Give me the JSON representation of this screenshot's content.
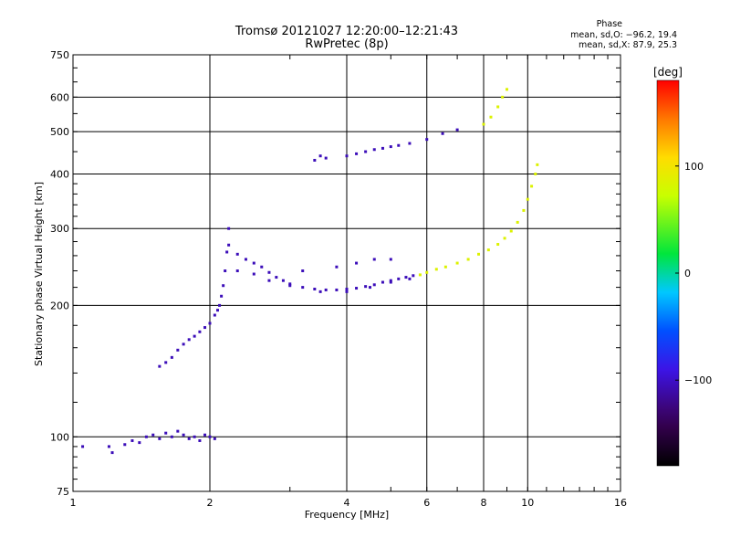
{
  "chart_data": {
    "type": "scatter",
    "title": "Tromsø 20121027 12:20:00–12:21:43",
    "subtitle": "RwPretec (8p)",
    "xlabel": "Frequency [MHz]",
    "ylabel": "Stationary phase Virtual Height [km]",
    "x_scale": "log",
    "y_scale": "log",
    "xlim": [
      1,
      16
    ],
    "ylim": [
      75,
      750
    ],
    "x_ticks": [
      "1",
      "2",
      "4",
      "6",
      "8",
      "10",
      "16"
    ],
    "x_tick_values": [
      1,
      2,
      4,
      6,
      8,
      10,
      16
    ],
    "y_ticks": [
      "75",
      "100",
      "200",
      "300",
      "400",
      "500",
      "600",
      "750"
    ],
    "y_tick_values": [
      75,
      100,
      200,
      300,
      400,
      500,
      600,
      750
    ],
    "grid": true,
    "phase_info": {
      "title": "Phase",
      "line_o": "mean, sd,O: −96.2, 19.4",
      "line_x": "mean, sd,X: 87.9, 25.3"
    },
    "colorbar": {
      "label": "[deg]",
      "range": [
        -180,
        180
      ],
      "ticks": [
        "100",
        "0",
        "−100"
      ],
      "tick_values": [
        100,
        0,
        -100
      ]
    },
    "series": [
      {
        "mode": "O",
        "color_deg": -105,
        "points": [
          [
            1.05,
            95
          ],
          [
            1.2,
            95
          ],
          [
            1.22,
            92
          ],
          [
            1.3,
            96
          ],
          [
            1.35,
            98
          ],
          [
            1.4,
            97
          ],
          [
            1.45,
            100
          ],
          [
            1.5,
            101
          ],
          [
            1.55,
            99
          ],
          [
            1.6,
            102
          ],
          [
            1.65,
            100
          ],
          [
            1.7,
            103
          ],
          [
            1.75,
            101
          ],
          [
            1.8,
            99
          ],
          [
            1.85,
            100
          ],
          [
            1.9,
            98
          ],
          [
            1.95,
            101
          ],
          [
            2.0,
            100
          ],
          [
            2.05,
            99
          ],
          [
            1.55,
            145
          ],
          [
            1.6,
            148
          ],
          [
            1.65,
            152
          ],
          [
            1.7,
            158
          ],
          [
            1.75,
            163
          ],
          [
            1.8,
            167
          ],
          [
            1.85,
            170
          ],
          [
            1.9,
            174
          ],
          [
            1.95,
            178
          ],
          [
            2.0,
            182
          ],
          [
            2.05,
            190
          ],
          [
            2.08,
            195
          ],
          [
            2.1,
            200
          ],
          [
            2.12,
            210
          ],
          [
            2.14,
            222
          ],
          [
            2.16,
            240
          ],
          [
            2.18,
            265
          ],
          [
            2.2,
            300
          ],
          [
            2.2,
            275
          ],
          [
            2.3,
            262
          ],
          [
            2.4,
            255
          ],
          [
            2.5,
            250
          ],
          [
            2.6,
            245
          ],
          [
            2.7,
            238
          ],
          [
            2.8,
            232
          ],
          [
            2.9,
            228
          ],
          [
            3.0,
            224
          ],
          [
            3.2,
            220
          ],
          [
            3.4,
            218
          ],
          [
            3.6,
            217
          ],
          [
            3.8,
            217
          ],
          [
            4.0,
            218
          ],
          [
            4.2,
            219
          ],
          [
            4.4,
            221
          ],
          [
            4.6,
            223
          ],
          [
            4.8,
            226
          ],
          [
            5.0,
            228
          ],
          [
            5.2,
            230
          ],
          [
            5.4,
            232
          ],
          [
            5.6,
            234
          ],
          [
            2.3,
            240
          ],
          [
            2.5,
            236
          ],
          [
            2.7,
            228
          ],
          [
            3.0,
            222
          ],
          [
            3.5,
            215
          ],
          [
            4.0,
            215
          ],
          [
            4.5,
            220
          ],
          [
            5.0,
            226
          ],
          [
            5.5,
            230
          ],
          [
            3.2,
            240
          ],
          [
            3.8,
            245
          ],
          [
            4.2,
            250
          ],
          [
            4.6,
            255
          ],
          [
            5.0,
            255
          ],
          [
            3.4,
            430
          ],
          [
            3.5,
            440
          ],
          [
            3.6,
            435
          ],
          [
            4.0,
            440
          ],
          [
            4.2,
            445
          ],
          [
            4.4,
            450
          ],
          [
            4.6,
            455
          ],
          [
            4.8,
            458
          ],
          [
            5.0,
            462
          ],
          [
            5.2,
            465
          ],
          [
            5.5,
            470
          ],
          [
            6.0,
            480
          ],
          [
            6.5,
            495
          ],
          [
            7.0,
            505
          ]
        ]
      },
      {
        "mode": "X",
        "color_deg": 85,
        "points": [
          [
            5.8,
            235
          ],
          [
            6.0,
            238
          ],
          [
            6.3,
            242
          ],
          [
            6.6,
            245
          ],
          [
            7.0,
            250
          ],
          [
            7.4,
            255
          ],
          [
            7.8,
            262
          ],
          [
            8.2,
            268
          ],
          [
            8.6,
            276
          ],
          [
            8.9,
            285
          ],
          [
            9.2,
            296
          ],
          [
            9.5,
            310
          ],
          [
            9.8,
            330
          ],
          [
            10.0,
            350
          ],
          [
            10.2,
            375
          ],
          [
            10.4,
            400
          ],
          [
            10.5,
            420
          ],
          [
            8.0,
            520
          ],
          [
            8.3,
            540
          ],
          [
            8.6,
            570
          ],
          [
            8.8,
            600
          ],
          [
            9.0,
            625
          ]
        ]
      }
    ]
  }
}
